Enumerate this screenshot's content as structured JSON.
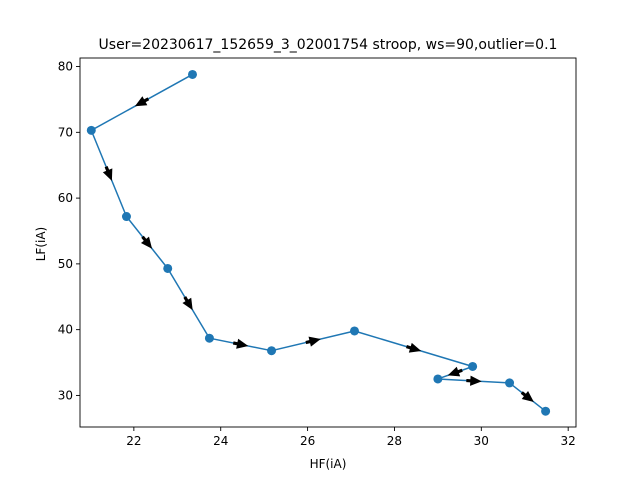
{
  "chart_data": {
    "type": "line",
    "title": "User=20230617_152659_3_02001754 stroop, ws=90,outlier=0.1",
    "xlabel": "HF(iA)",
    "ylabel": "LF(iA)",
    "xlim": [
      20.76,
      32.18
    ],
    "ylim": [
      25.2,
      81.3
    ],
    "xticks": [
      22,
      24,
      26,
      28,
      30,
      32
    ],
    "yticks": [
      30,
      40,
      50,
      60,
      70,
      80
    ],
    "grid": false,
    "series": [
      {
        "color": "#1f77b4",
        "arrow_color": "#000000",
        "marker": "circle",
        "x": [
          23.35,
          21.02,
          21.83,
          22.78,
          23.74,
          25.17,
          27.08,
          29.8,
          29.0,
          30.65,
          31.48
        ],
        "y": [
          78.8,
          70.3,
          57.2,
          49.3,
          38.7,
          36.8,
          39.8,
          34.4,
          32.5,
          31.9,
          27.6
        ]
      }
    ]
  }
}
